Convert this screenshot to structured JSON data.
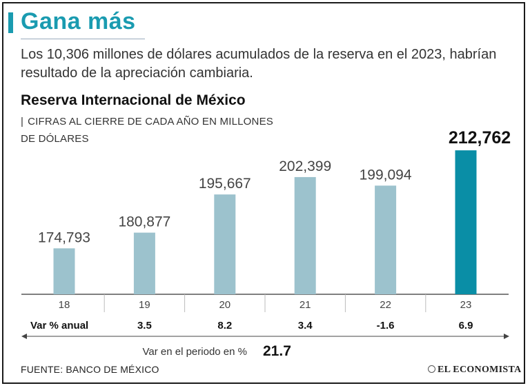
{
  "header": {
    "title": "Gana más",
    "subtitle": "Los 10,306 millones de dólares acumulados de la reserva en el 2023, habrían resultado de la apreciación cambiaria."
  },
  "chart_data": {
    "type": "bar",
    "title": "Reserva Internacional de México",
    "subtitle": "CIFRAS AL CIERRE DE CADA AÑO EN MILLONES DE DÓLARES",
    "categories": [
      "18",
      "19",
      "20",
      "21",
      "22",
      "23"
    ],
    "values": [
      174793,
      180877,
      195667,
      202399,
      199094,
      212762
    ],
    "value_labels": [
      "174,793",
      "180,877",
      "195,667",
      "202,399",
      "199,094",
      "212,762"
    ],
    "highlight_index": 5,
    "ylim": [
      157000,
      216000
    ],
    "var_row": {
      "label": "Var % anual",
      "values": [
        "",
        "3.5",
        "8.2",
        "3.4",
        "-1.6",
        "6.9"
      ]
    },
    "period": {
      "label": "Var en el periodo en %",
      "value": "21.7"
    }
  },
  "footer": {
    "source": "FUENTE: BANCO DE MÉXICO",
    "brand": "EL ECONOMISTA"
  },
  "colors": {
    "accent": "#1a9bb0",
    "bar": "#9cc2cd",
    "bar_highlight": "#0a8ea6",
    "axis": "#555555"
  }
}
